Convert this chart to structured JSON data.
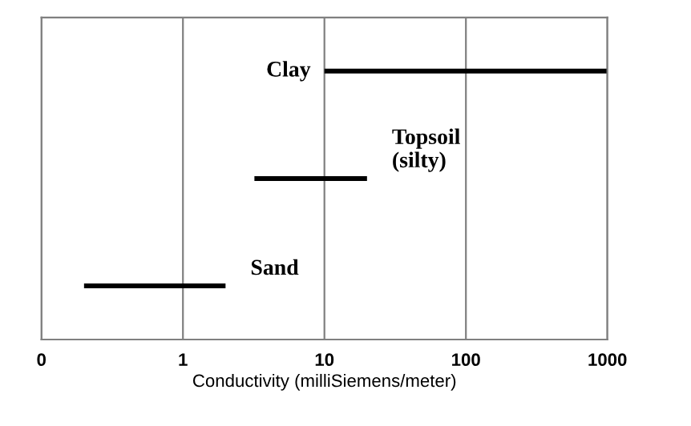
{
  "chart_data": {
    "type": "bar",
    "orientation": "horizontal",
    "categories": [
      "Clay",
      "Topsoil\n(silty)",
      "Sand"
    ],
    "base": [
      10,
      3.2,
      0.2
    ],
    "values": [
      990,
      16.8,
      1.8
    ],
    "color": "#000000",
    "xlabel": "Conductivity (milliSiemens/meter)",
    "log": "x",
    "xlim": [
      0.1,
      1000
    ],
    "xticks": [
      {
        "value": 0.1,
        "label": "0"
      },
      1,
      10,
      100,
      1000
    ],
    "grid": "x"
  }
}
